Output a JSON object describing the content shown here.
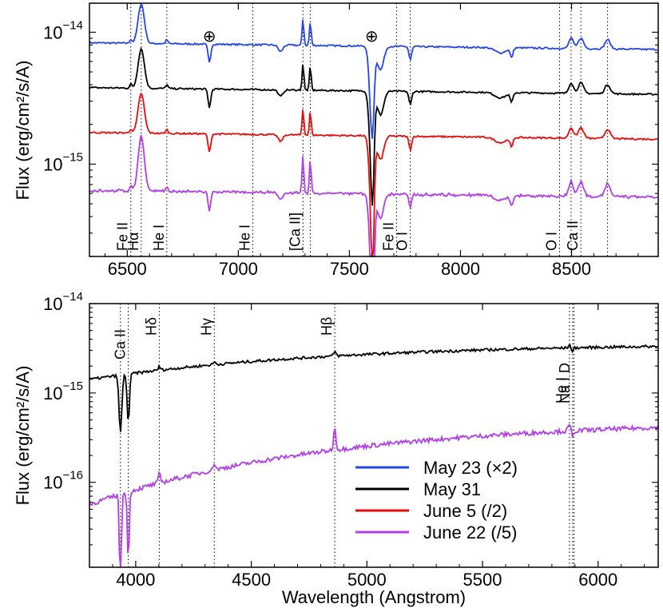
{
  "chart_data": [
    {
      "type": "line",
      "panel": "top",
      "ylabel": "Flux  (erg/cm²/s/A)",
      "xlim": [
        6330,
        8890
      ],
      "ylim_log10": [
        -15.7,
        -13.78
      ],
      "xticks": [
        6500,
        7000,
        7500,
        8000,
        8500
      ],
      "xtick_labels": [
        "6500",
        "7000",
        "7500",
        "8000",
        "8500"
      ],
      "yticks": [
        {
          "base": "10",
          "exp": "−14",
          "log10": -14
        },
        {
          "base": "10",
          "exp": "−15",
          "log10": -15
        }
      ],
      "line_ids": [
        {
          "label": "Fe II",
          "x": 6516
        },
        {
          "label": "Hα",
          "x": 6563
        },
        {
          "label": "He I",
          "x": 6678
        },
        {
          "label": "He I",
          "x": 7065
        },
        {
          "label": "[Ca II]",
          "x": 7291
        },
        {
          "label": "",
          "x": 7324
        },
        {
          "label": "Fe II",
          "x": 7712
        },
        {
          "label": "O I",
          "x": 7774
        },
        {
          "label": "O I",
          "x": 8446
        },
        {
          "label": "",
          "x": 8498
        },
        {
          "label": "Ca II",
          "x": 8542
        },
        {
          "label": "",
          "x": 8662
        }
      ],
      "telluric_marks": [
        {
          "symbol": "⊕",
          "x": 6870
        },
        {
          "symbol": "⊕",
          "x": 7600
        }
      ],
      "series": [
        {
          "name": "May 23 (×2)",
          "color": "#2446e6",
          "log10_continuum": -14.08
        },
        {
          "name": "May 31",
          "color": "#000000",
          "log10_continuum": -14.42
        },
        {
          "name": "June 5 (/2)",
          "color": "#e60c0c",
          "log10_continuum": -14.76
        },
        {
          "name": "June 22 (/5)",
          "color": "#b23ee8",
          "log10_continuum": -15.2
        }
      ]
    },
    {
      "type": "line",
      "panel": "bottom",
      "xlabel": "Wavelength  (Angstrom)",
      "ylabel": "Flux  (erg/cm²/s/A)",
      "xlim": [
        3800,
        6260
      ],
      "ylim_log10": [
        -16.95,
        -14
      ],
      "xticks": [
        4000,
        4500,
        5000,
        5500,
        6000
      ],
      "xtick_labels": [
        "4000",
        "4500",
        "5000",
        "5500",
        "6000"
      ],
      "yticks": [
        {
          "base": "10",
          "exp": "−14",
          "log10": -14
        },
        {
          "base": "10",
          "exp": "−15",
          "log10": -15
        },
        {
          "base": "10",
          "exp": "−16",
          "log10": -16
        }
      ],
      "line_ids": [
        {
          "label": "",
          "x": 3934
        },
        {
          "label": "Ca II",
          "x": 3968
        },
        {
          "label": "Hδ",
          "x": 4102
        },
        {
          "label": "Hγ",
          "x": 4340
        },
        {
          "label": "Hβ",
          "x": 4861
        },
        {
          "label": "He I",
          "x": 5876
        },
        {
          "label": "Na I D",
          "x": 5890
        },
        {
          "label": "",
          "x": 5896
        }
      ],
      "series": [
        {
          "name": "May 31",
          "color": "#000000"
        },
        {
          "name": "June 22 (/5)",
          "color": "#b23ee8"
        }
      ],
      "legend": {
        "placement": "lower-right",
        "entries": [
          {
            "label": "May 23 (×2)",
            "color": "#2446e6"
          },
          {
            "label": "May 31",
            "color": "#000000"
          },
          {
            "label": "June 5 (/2)",
            "color": "#e60c0c"
          },
          {
            "label": "June 22 (/5)",
            "color": "#b23ee8"
          }
        ]
      }
    }
  ]
}
